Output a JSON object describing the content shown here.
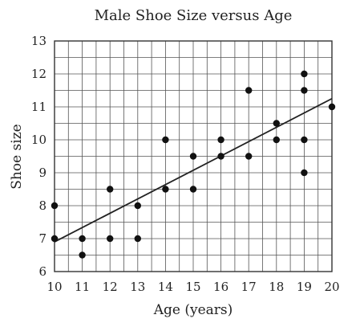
{
  "chart_data": {
    "type": "scatter",
    "title": "Male Shoe Size versus Age",
    "xlabel": "Age (years)",
    "ylabel": "Shoe size",
    "xlim": [
      10,
      20
    ],
    "ylim": [
      6,
      13
    ],
    "x_ticks": [
      10,
      11,
      12,
      13,
      14,
      15,
      16,
      17,
      18,
      19,
      20
    ],
    "y_ticks": [
      6,
      7,
      8,
      9,
      10,
      11,
      12,
      13
    ],
    "grid": true,
    "minor_grid_step": {
      "x": 0.5,
      "y": 0.5
    },
    "points": [
      {
        "x": 10,
        "y": 8
      },
      {
        "x": 10,
        "y": 7
      },
      {
        "x": 11,
        "y": 7
      },
      {
        "x": 11,
        "y": 6.5
      },
      {
        "x": 12,
        "y": 8.5
      },
      {
        "x": 12,
        "y": 7
      },
      {
        "x": 13,
        "y": 8
      },
      {
        "x": 13,
        "y": 7
      },
      {
        "x": 14,
        "y": 10
      },
      {
        "x": 14,
        "y": 8.5
      },
      {
        "x": 15,
        "y": 9.5
      },
      {
        "x": 15,
        "y": 8.5
      },
      {
        "x": 16,
        "y": 10
      },
      {
        "x": 16,
        "y": 9.5
      },
      {
        "x": 17,
        "y": 11.5
      },
      {
        "x": 17,
        "y": 9.5
      },
      {
        "x": 18,
        "y": 10.5
      },
      {
        "x": 18,
        "y": 10
      },
      {
        "x": 19,
        "y": 12
      },
      {
        "x": 19,
        "y": 11.5
      },
      {
        "x": 19,
        "y": 10
      },
      {
        "x": 19,
        "y": 9
      },
      {
        "x": 20,
        "y": 11
      }
    ],
    "trend_line": {
      "from": {
        "x": 10,
        "y": 6.9
      },
      "to": {
        "x": 20,
        "y": 11.25
      }
    }
  }
}
